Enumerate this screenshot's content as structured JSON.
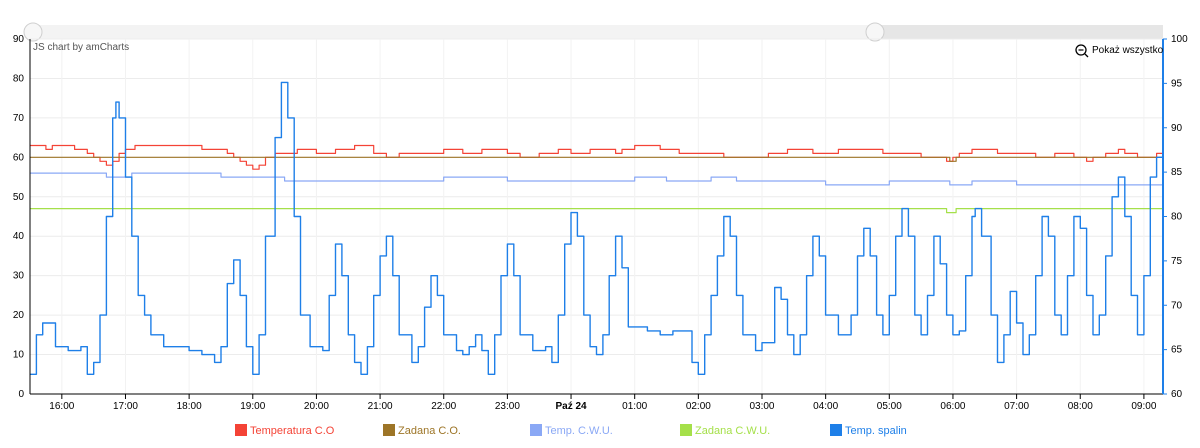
{
  "chart_data": {
    "type": "line",
    "credit": "JS chart by amCharts",
    "show_all_label": "Pokaż wszystko",
    "x_ticks": [
      "16:00",
      "17:00",
      "18:00",
      "19:00",
      "20:00",
      "21:00",
      "22:00",
      "23:00",
      "Paź 24",
      "01:00",
      "02:00",
      "03:00",
      "04:00",
      "05:00",
      "06:00",
      "07:00",
      "08:00",
      "09:00"
    ],
    "x_range_hours": [
      15.5,
      33.3
    ],
    "y_left": {
      "ticks": [
        0,
        10,
        20,
        30,
        40,
        50,
        60,
        70,
        80,
        90
      ],
      "range": [
        0,
        90
      ]
    },
    "y_right": {
      "ticks": [
        60,
        65,
        70,
        75,
        80,
        85,
        90,
        95,
        100
      ],
      "range": [
        60,
        100
      ]
    },
    "series": [
      {
        "name": "Temperatura C.O",
        "color": "#f44336",
        "axis": "left",
        "points": [
          [
            15.5,
            63
          ],
          [
            15.75,
            62
          ],
          [
            15.85,
            63
          ],
          [
            16.1,
            63
          ],
          [
            16.2,
            62
          ],
          [
            16.3,
            62
          ],
          [
            16.4,
            61
          ],
          [
            16.5,
            60
          ],
          [
            16.6,
            59
          ],
          [
            16.7,
            58
          ],
          [
            16.8,
            59
          ],
          [
            16.9,
            61
          ],
          [
            17.0,
            62
          ],
          [
            17.15,
            63
          ],
          [
            18.1,
            63
          ],
          [
            18.2,
            62
          ],
          [
            18.5,
            62
          ],
          [
            18.6,
            61
          ],
          [
            18.7,
            60
          ],
          [
            18.8,
            59
          ],
          [
            18.9,
            58
          ],
          [
            19.0,
            57
          ],
          [
            19.1,
            58
          ],
          [
            19.2,
            60
          ],
          [
            19.35,
            61
          ],
          [
            19.6,
            61
          ],
          [
            19.7,
            62
          ],
          [
            19.85,
            62
          ],
          [
            20.0,
            61
          ],
          [
            20.2,
            61
          ],
          [
            20.3,
            62
          ],
          [
            20.5,
            62
          ],
          [
            20.6,
            63
          ],
          [
            20.8,
            63
          ],
          [
            20.9,
            61
          ],
          [
            21.1,
            60
          ],
          [
            21.3,
            61
          ],
          [
            21.9,
            61
          ],
          [
            22.0,
            62
          ],
          [
            22.2,
            62
          ],
          [
            22.3,
            61
          ],
          [
            22.4,
            61
          ],
          [
            22.6,
            62
          ],
          [
            22.9,
            62
          ],
          [
            23.0,
            61
          ],
          [
            23.2,
            60
          ],
          [
            23.4,
            60
          ],
          [
            23.5,
            61
          ],
          [
            23.7,
            61
          ],
          [
            23.8,
            62
          ],
          [
            24.0,
            61
          ],
          [
            24.2,
            61
          ],
          [
            24.3,
            62
          ],
          [
            24.6,
            62
          ],
          [
            24.7,
            61
          ],
          [
            24.8,
            62
          ],
          [
            25.0,
            63
          ],
          [
            25.3,
            63
          ],
          [
            25.4,
            62
          ],
          [
            25.6,
            62
          ],
          [
            25.7,
            61
          ],
          [
            26.2,
            61
          ],
          [
            26.4,
            60
          ],
          [
            27.0,
            60
          ],
          [
            27.1,
            61
          ],
          [
            27.3,
            61
          ],
          [
            27.4,
            62
          ],
          [
            27.7,
            62
          ],
          [
            27.8,
            61
          ],
          [
            28.1,
            61
          ],
          [
            28.2,
            62
          ],
          [
            28.8,
            62
          ],
          [
            28.9,
            61
          ],
          [
            29.2,
            61
          ],
          [
            29.5,
            60
          ],
          [
            29.8,
            60
          ],
          [
            29.9,
            59
          ],
          [
            30.0,
            60
          ],
          [
            30.1,
            61
          ],
          [
            30.3,
            62
          ],
          [
            30.6,
            62
          ],
          [
            30.7,
            61
          ],
          [
            31.2,
            61
          ],
          [
            31.3,
            60
          ],
          [
            31.5,
            60
          ],
          [
            31.6,
            61
          ],
          [
            31.8,
            61
          ],
          [
            31.9,
            60
          ],
          [
            32.0,
            60
          ],
          [
            32.1,
            59
          ],
          [
            32.2,
            60
          ],
          [
            32.4,
            61
          ],
          [
            32.6,
            62
          ],
          [
            32.7,
            61
          ],
          [
            32.9,
            60
          ],
          [
            33.1,
            60
          ],
          [
            33.2,
            61
          ],
          [
            33.3,
            61
          ]
        ]
      },
      {
        "name": "Zadana C.O.",
        "color": "#9d7527",
        "axis": "left",
        "points": [
          [
            15.5,
            60
          ],
          [
            29.8,
            60
          ],
          [
            29.95,
            59
          ],
          [
            30.05,
            60
          ],
          [
            33.3,
            60
          ]
        ]
      },
      {
        "name": "Temp. C.W.U.",
        "color": "#8aa8f5",
        "axis": "left",
        "points": [
          [
            15.5,
            56
          ],
          [
            16.5,
            56
          ],
          [
            16.7,
            55
          ],
          [
            16.9,
            55
          ],
          [
            17.1,
            56
          ],
          [
            18.4,
            56
          ],
          [
            18.5,
            55
          ],
          [
            19.2,
            55
          ],
          [
            19.5,
            54
          ],
          [
            20.0,
            54
          ],
          [
            20.5,
            54
          ],
          [
            20.8,
            54
          ],
          [
            21.2,
            54
          ],
          [
            21.5,
            54
          ],
          [
            22.0,
            55
          ],
          [
            22.5,
            55
          ],
          [
            23.0,
            54
          ],
          [
            24.0,
            54
          ],
          [
            24.6,
            54
          ],
          [
            25.0,
            55
          ],
          [
            25.5,
            54
          ],
          [
            26.2,
            55
          ],
          [
            26.6,
            54
          ],
          [
            27.0,
            54
          ],
          [
            27.5,
            54
          ],
          [
            28.0,
            53
          ],
          [
            28.8,
            53
          ],
          [
            29.0,
            54
          ],
          [
            29.8,
            54
          ],
          [
            29.95,
            53
          ],
          [
            30.1,
            53
          ],
          [
            30.3,
            54
          ],
          [
            30.8,
            54
          ],
          [
            31.0,
            53
          ],
          [
            33.3,
            53
          ]
        ]
      },
      {
        "name": "Zadana C.W.U.",
        "color": "#a5e04a",
        "axis": "left",
        "points": [
          [
            15.5,
            47
          ],
          [
            29.8,
            47
          ],
          [
            29.9,
            46
          ],
          [
            30.0,
            46
          ],
          [
            30.05,
            47
          ],
          [
            33.3,
            47
          ]
        ]
      },
      {
        "name": "Temp. spalin",
        "color": "#1e7fe8",
        "axis": "left",
        "points": [
          [
            15.5,
            5
          ],
          [
            15.6,
            15
          ],
          [
            15.7,
            18
          ],
          [
            15.9,
            12
          ],
          [
            16.1,
            11
          ],
          [
            16.3,
            12
          ],
          [
            16.4,
            5
          ],
          [
            16.5,
            8
          ],
          [
            16.6,
            20
          ],
          [
            16.7,
            45
          ],
          [
            16.8,
            70
          ],
          [
            16.85,
            74
          ],
          [
            16.9,
            70
          ],
          [
            17.0,
            55
          ],
          [
            17.1,
            40
          ],
          [
            17.2,
            25
          ],
          [
            17.3,
            20
          ],
          [
            17.4,
            15
          ],
          [
            17.6,
            12
          ],
          [
            18.0,
            11
          ],
          [
            18.2,
            10
          ],
          [
            18.4,
            8
          ],
          [
            18.5,
            12
          ],
          [
            18.6,
            28
          ],
          [
            18.7,
            34
          ],
          [
            18.8,
            25
          ],
          [
            18.9,
            12
          ],
          [
            19.0,
            5
          ],
          [
            19.1,
            15
          ],
          [
            19.2,
            40
          ],
          [
            19.35,
            65
          ],
          [
            19.45,
            79
          ],
          [
            19.55,
            70
          ],
          [
            19.65,
            45
          ],
          [
            19.75,
            20
          ],
          [
            19.9,
            12
          ],
          [
            20.1,
            11
          ],
          [
            20.2,
            25
          ],
          [
            20.3,
            38
          ],
          [
            20.4,
            30
          ],
          [
            20.5,
            15
          ],
          [
            20.6,
            8
          ],
          [
            20.7,
            5
          ],
          [
            20.8,
            12
          ],
          [
            20.9,
            25
          ],
          [
            21.0,
            35
          ],
          [
            21.1,
            40
          ],
          [
            21.2,
            30
          ],
          [
            21.3,
            15
          ],
          [
            21.5,
            8
          ],
          [
            21.6,
            12
          ],
          [
            21.7,
            22
          ],
          [
            21.8,
            30
          ],
          [
            21.9,
            25
          ],
          [
            22.0,
            15
          ],
          [
            22.2,
            11
          ],
          [
            22.3,
            10
          ],
          [
            22.4,
            12
          ],
          [
            22.5,
            15
          ],
          [
            22.6,
            11
          ],
          [
            22.7,
            5
          ],
          [
            22.8,
            15
          ],
          [
            22.9,
            30
          ],
          [
            23.0,
            38
          ],
          [
            23.1,
            30
          ],
          [
            23.2,
            15
          ],
          [
            23.4,
            11
          ],
          [
            23.6,
            12
          ],
          [
            23.7,
            8
          ],
          [
            23.8,
            20
          ],
          [
            23.9,
            38
          ],
          [
            24.0,
            46
          ],
          [
            24.1,
            40
          ],
          [
            24.2,
            20
          ],
          [
            24.3,
            12
          ],
          [
            24.4,
            10
          ],
          [
            24.5,
            15
          ],
          [
            24.6,
            30
          ],
          [
            24.7,
            40
          ],
          [
            24.8,
            32
          ],
          [
            24.9,
            17
          ],
          [
            25.2,
            16
          ],
          [
            25.4,
            15
          ],
          [
            25.6,
            16
          ],
          [
            25.8,
            16
          ],
          [
            25.9,
            8
          ],
          [
            26.0,
            5
          ],
          [
            26.1,
            15
          ],
          [
            26.2,
            25
          ],
          [
            26.3,
            35
          ],
          [
            26.4,
            45
          ],
          [
            26.5,
            40
          ],
          [
            26.6,
            25
          ],
          [
            26.7,
            15
          ],
          [
            26.9,
            11
          ],
          [
            27.0,
            13
          ],
          [
            27.2,
            27
          ],
          [
            27.3,
            24
          ],
          [
            27.4,
            15
          ],
          [
            27.5,
            10
          ],
          [
            27.6,
            15
          ],
          [
            27.7,
            30
          ],
          [
            27.8,
            40
          ],
          [
            27.9,
            35
          ],
          [
            28.0,
            20
          ],
          [
            28.2,
            15
          ],
          [
            28.4,
            20
          ],
          [
            28.5,
            35
          ],
          [
            28.6,
            42
          ],
          [
            28.7,
            35
          ],
          [
            28.8,
            20
          ],
          [
            28.9,
            15
          ],
          [
            29.0,
            25
          ],
          [
            29.1,
            40
          ],
          [
            29.2,
            47
          ],
          [
            29.3,
            40
          ],
          [
            29.4,
            20
          ],
          [
            29.5,
            15
          ],
          [
            29.6,
            25
          ],
          [
            29.7,
            40
          ],
          [
            29.8,
            33
          ],
          [
            29.9,
            20
          ],
          [
            30.0,
            15
          ],
          [
            30.1,
            16
          ],
          [
            30.2,
            30
          ],
          [
            30.3,
            45
          ],
          [
            30.35,
            47
          ],
          [
            30.45,
            40
          ],
          [
            30.6,
            20
          ],
          [
            30.7,
            8
          ],
          [
            30.8,
            15
          ],
          [
            30.9,
            26
          ],
          [
            31.0,
            18
          ],
          [
            31.1,
            10
          ],
          [
            31.2,
            15
          ],
          [
            31.3,
            30
          ],
          [
            31.4,
            45
          ],
          [
            31.5,
            40
          ],
          [
            31.6,
            20
          ],
          [
            31.7,
            15
          ],
          [
            31.8,
            30
          ],
          [
            31.9,
            45
          ],
          [
            32.0,
            42
          ],
          [
            32.1,
            25
          ],
          [
            32.2,
            15
          ],
          [
            32.3,
            20
          ],
          [
            32.4,
            35
          ],
          [
            32.5,
            50
          ],
          [
            32.6,
            55
          ],
          [
            32.7,
            45
          ],
          [
            32.8,
            25
          ],
          [
            32.9,
            15
          ],
          [
            33.0,
            30
          ],
          [
            33.1,
            55
          ],
          [
            33.2,
            60
          ],
          [
            33.3,
            61
          ]
        ]
      }
    ],
    "legend_placement": "bottom"
  }
}
